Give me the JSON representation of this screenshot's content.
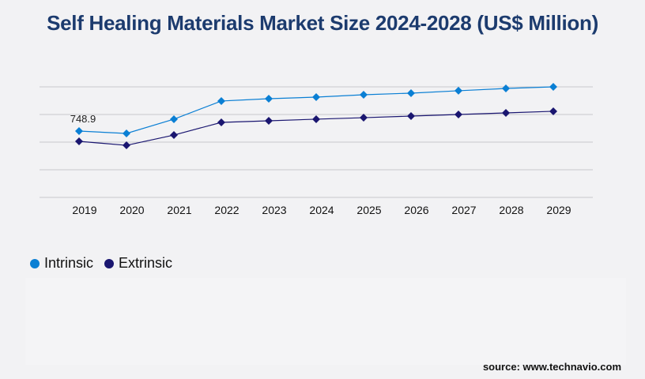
{
  "chart_data": {
    "type": "line",
    "title": "Self Healing Materials Market Size 2024-2028 (US$ Million)",
    "categories": [
      "2019",
      "2020",
      "2021",
      "2022",
      "2023",
      "2024",
      "2025",
      "2026",
      "2027",
      "2028",
      "2029"
    ],
    "series": [
      {
        "name": "Intrinsic",
        "color": "#0a7fd4",
        "values": [
          748.9,
          722,
          883,
          1088,
          1114,
          1132,
          1159,
          1177,
          1204,
          1230,
          1248
        ]
      },
      {
        "name": "Extrinsic",
        "color": "#1a1670",
        "values": [
          633,
          588,
          704,
          847,
          865,
          883,
          900,
          918,
          936,
          954,
          972
        ]
      }
    ],
    "data_labels": [
      {
        "series": "Intrinsic",
        "category": "2019",
        "text": "748.9"
      }
    ],
    "ylim": [
      0,
      1248
    ],
    "grid": true,
    "legend": "bottom-left",
    "xlabel": "",
    "ylabel": ""
  },
  "source": "source: www.technavio.com"
}
